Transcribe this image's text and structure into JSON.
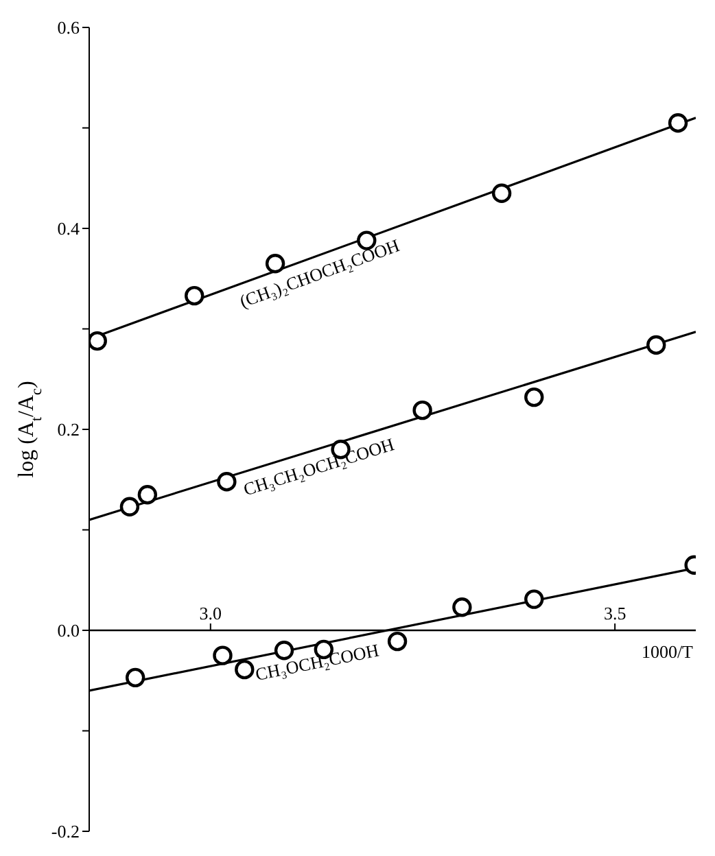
{
  "chart_data": {
    "type": "scatter",
    "xlabel": "1000/T",
    "ylabel": "log (A$_{t}$/A$_{c}$)",
    "xlim": [
      2.85,
      3.6
    ],
    "xticks": [
      {
        "value": 3.0,
        "label": "3.0"
      },
      {
        "value": 3.5,
        "label": "3.5"
      }
    ],
    "ylim": [
      -0.2,
      0.6
    ],
    "yticks": [
      {
        "value": -0.2,
        "label": "-0.2"
      },
      {
        "value": -0.1,
        "label": null
      },
      {
        "value": 0,
        "label": "0.0"
      },
      {
        "value": 0.1,
        "label": null
      },
      {
        "value": 0.2,
        "label": "0.2"
      },
      {
        "value": 0.3,
        "label": null
      },
      {
        "value": 0.4,
        "label": "0.4"
      },
      {
        "value": 0.5,
        "label": null
      },
      {
        "value": 0.6,
        "label": "0.6"
      }
    ],
    "grid": false,
    "legend": false,
    "marker": "circle",
    "series": [
      {
        "color": "#000000",
        "x": [
          2.86,
          2.98,
          3.08,
          3.193,
          3.36,
          3.578
        ],
        "values": [
          0.288,
          0.333,
          0.365,
          0.388,
          0.435,
          0.505
        ]
      },
      {
        "type": "line",
        "marker": "none",
        "name": "(CH₃)₂CHOCH₂COOH",
        "color": "#000000",
        "x": [
          2.85,
          3.6
        ],
        "values": [
          0.29,
          0.51
        ]
      },
      {
        "color": "#000000",
        "x": [
          2.9,
          2.922,
          3.02,
          3.161,
          3.262,
          3.4,
          3.551
        ],
        "values": [
          0.123,
          0.135,
          0.148,
          0.18,
          0.219,
          0.232,
          0.284
        ]
      },
      {
        "type": "line",
        "marker": "none",
        "name": "CH₃CH₂OCH₂COOH",
        "color": "#000000",
        "x": [
          2.85,
          3.6
        ],
        "values": [
          0.11,
          0.297
        ]
      },
      {
        "color": "#000000",
        "x": [
          2.907,
          3.015,
          3.042,
          3.091,
          3.14,
          3.231,
          3.311,
          3.4,
          3.598
        ],
        "values": [
          -0.047,
          -0.025,
          -0.039,
          -0.02,
          -0.019,
          -0.011,
          0.023,
          0.031,
          0.065
        ]
      },
      {
        "type": "line",
        "marker": "none",
        "name": "CH₃OCH₂COOH",
        "color": "#000000",
        "x": [
          2.85,
          3.6
        ],
        "values": [
          -0.06,
          0.062
        ]
      }
    ]
  }
}
